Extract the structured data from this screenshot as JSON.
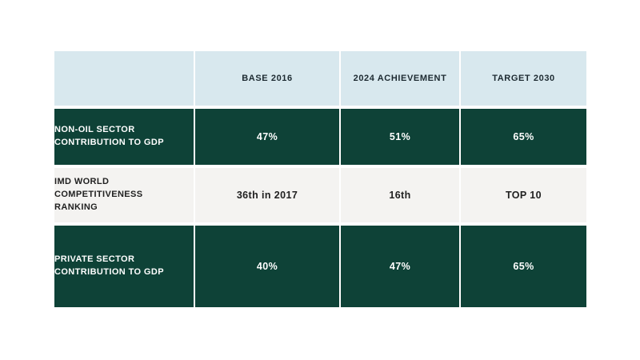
{
  "page": {
    "background": "#ffffff"
  },
  "table": {
    "columns": {
      "corner": "",
      "base": "BASE 2016",
      "achievement": "2024 ACHIEVEMENT",
      "target": "TARGET 2030"
    },
    "rows": [
      {
        "label": "NON-OIL SECTOR\nCONTRIBUTION TO GDP",
        "values": [
          "47%",
          "51%",
          "65%"
        ],
        "theme": "dark"
      },
      {
        "label": "IMD WORLD\nCOMPETITIVENESS\nRANKING",
        "values": [
          "36th in 2017",
          "16th",
          "TOP 10"
        ],
        "theme": "light"
      },
      {
        "label": "PRIVATE SECTOR\nCONTRIBUTION TO GDP",
        "values": [
          "40%",
          "47%",
          "65%"
        ],
        "theme": "dark"
      }
    ],
    "colors": {
      "header_bg": "#d8e8ee",
      "header_text": "#1d2a31",
      "dark_row_bg": "#0e4237",
      "dark_row_text": "#ffffff",
      "light_row_bg": "#f4f3f1",
      "light_row_text": "#212121",
      "divider": "#ffffff"
    }
  },
  "chart_data": {
    "type": "table",
    "columns": [
      "",
      "BASE 2016",
      "2024 ACHIEVEMENT",
      "TARGET 2030"
    ],
    "rows": [
      [
        "NON-OIL SECTOR CONTRIBUTION TO GDP",
        "47%",
        "51%",
        "65%"
      ],
      [
        "IMD WORLD COMPETITIVENESS RANKING",
        "36th in 2017",
        "16th",
        "TOP 10"
      ],
      [
        "PRIVATE SECTOR CONTRIBUTION TO GDP",
        "40%",
        "47%",
        "65%"
      ]
    ]
  }
}
